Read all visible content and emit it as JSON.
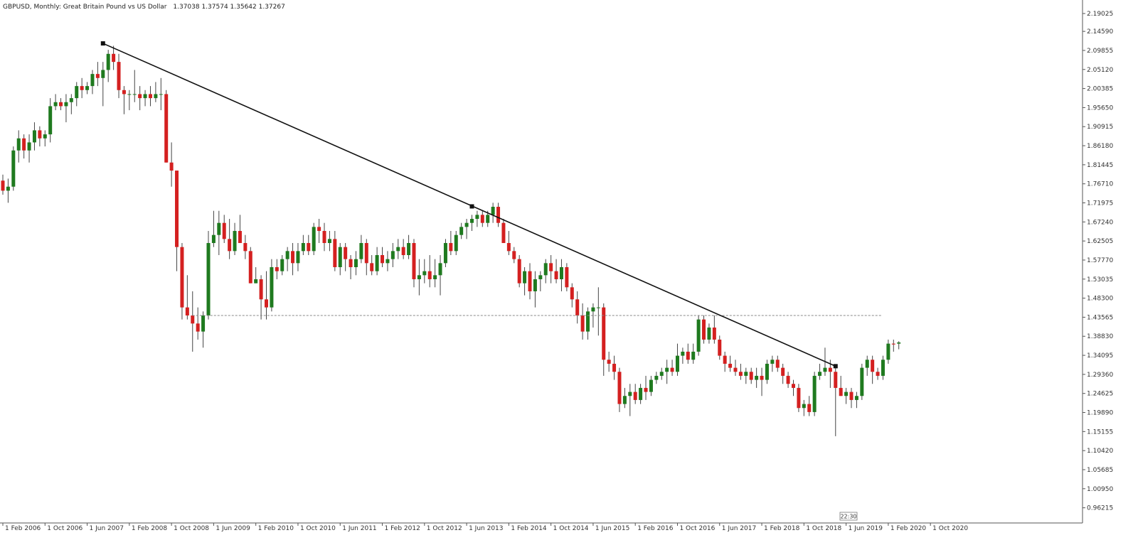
{
  "header": {
    "symbol_title": "GBPUSD, Monthly:  Great Britain Pound vs US Dollar",
    "ohlc": "1.37038 1.37574 1.35642 1.37267"
  },
  "countdown": "22:30",
  "colors": {
    "up": "#1f7a1f",
    "down": "#d42020",
    "wick": "#444444",
    "trendline": "#111111",
    "level": "#888888",
    "axis": "#555555",
    "background": "#ffffff"
  },
  "chart_data": {
    "type": "candlestick",
    "title": "GBPUSD, Monthly:  Great Britain Pound vs US Dollar",
    "xlabel": "",
    "ylabel": "",
    "ylim": [
      0.935,
      2.215
    ],
    "y_ticks": [
      "2.19025",
      "2.14590",
      "2.09855",
      "2.05120",
      "2.00385",
      "1.95650",
      "1.90915",
      "1.86180",
      "1.81445",
      "1.76710",
      "1.71975",
      "1.67240",
      "1.62505",
      "1.57770",
      "1.53035",
      "1.48300",
      "1.43565",
      "1.38830",
      "1.34095",
      "1.29360",
      "1.24625",
      "1.19890",
      "1.15155",
      "1.10420",
      "1.05685",
      "1.00950",
      "0.96215"
    ],
    "x_ticks": [
      "1 Feb 2006",
      "1 Oct 2006",
      "1 Jun 2007",
      "1 Feb 2008",
      "1 Oct 2008",
      "1 Jun 2009",
      "1 Feb 2010",
      "1 Oct 2010",
      "1 Jun 2011",
      "1 Feb 2012",
      "1 Oct 2012",
      "1 Jun 2013",
      "1 Feb 2014",
      "1 Oct 2014",
      "1 Jun 2015",
      "1 Feb 2016",
      "1 Oct 2016",
      "1 Jun 2017",
      "1 Feb 2018",
      "1 Oct 2018",
      "1 Jun 2019",
      "1 Feb 2020",
      "1 Oct 2020"
    ],
    "grid": false,
    "candles": [
      [
        1.775,
        1.79,
        1.74,
        1.75
      ],
      [
        1.75,
        1.78,
        1.72,
        1.76
      ],
      [
        1.76,
        1.86,
        1.75,
        1.85
      ],
      [
        1.85,
        1.9,
        1.82,
        1.88
      ],
      [
        1.88,
        1.89,
        1.83,
        1.85
      ],
      [
        1.85,
        1.89,
        1.82,
        1.87
      ],
      [
        1.87,
        1.92,
        1.85,
        1.9
      ],
      [
        1.9,
        1.91,
        1.86,
        1.88
      ],
      [
        1.88,
        1.9,
        1.86,
        1.89
      ],
      [
        1.89,
        1.98,
        1.87,
        1.96
      ],
      [
        1.96,
        1.99,
        1.95,
        1.97
      ],
      [
        1.97,
        1.98,
        1.95,
        1.96
      ],
      [
        1.96,
        1.99,
        1.92,
        1.97
      ],
      [
        1.97,
        1.99,
        1.94,
        1.98
      ],
      [
        1.98,
        2.02,
        1.96,
        2.01
      ],
      [
        2.01,
        2.03,
        1.98,
        2.0
      ],
      [
        2.0,
        2.02,
        1.99,
        2.01
      ],
      [
        2.01,
        2.05,
        1.99,
        2.04
      ],
      [
        2.04,
        2.07,
        2.01,
        2.03
      ],
      [
        2.03,
        2.07,
        1.96,
        2.05
      ],
      [
        2.05,
        2.1,
        2.02,
        2.09
      ],
      [
        2.09,
        2.11,
        2.05,
        2.07
      ],
      [
        2.07,
        2.09,
        1.98,
        2.0
      ],
      [
        2.0,
        2.01,
        1.94,
        1.99
      ],
      [
        1.99,
        2.0,
        1.95,
        1.99
      ],
      [
        1.99,
        2.05,
        1.97,
        1.99
      ],
      [
        1.99,
        2.01,
        1.95,
        1.98
      ],
      [
        1.98,
        2.0,
        1.96,
        1.99
      ],
      [
        1.99,
        2.01,
        1.96,
        1.98
      ],
      [
        1.98,
        2.02,
        1.97,
        1.99
      ],
      [
        1.99,
        2.03,
        1.95,
        1.99
      ],
      [
        1.99,
        2.0,
        1.82,
        1.82
      ],
      [
        1.82,
        1.87,
        1.76,
        1.8
      ],
      [
        1.8,
        1.79,
        1.55,
        1.61
      ],
      [
        1.61,
        1.62,
        1.43,
        1.46
      ],
      [
        1.46,
        1.54,
        1.43,
        1.44
      ],
      [
        1.44,
        1.5,
        1.35,
        1.42
      ],
      [
        1.42,
        1.46,
        1.38,
        1.4
      ],
      [
        1.4,
        1.45,
        1.36,
        1.44
      ],
      [
        1.44,
        1.65,
        1.43,
        1.62
      ],
      [
        1.62,
        1.7,
        1.61,
        1.64
      ],
      [
        1.64,
        1.7,
        1.59,
        1.67
      ],
      [
        1.67,
        1.69,
        1.62,
        1.63
      ],
      [
        1.63,
        1.68,
        1.58,
        1.6
      ],
      [
        1.6,
        1.67,
        1.59,
        1.65
      ],
      [
        1.65,
        1.69,
        1.62,
        1.62
      ],
      [
        1.62,
        1.64,
        1.58,
        1.6
      ],
      [
        1.6,
        1.61,
        1.52,
        1.52
      ],
      [
        1.52,
        1.56,
        1.52,
        1.53
      ],
      [
        1.53,
        1.54,
        1.43,
        1.48
      ],
      [
        1.48,
        1.55,
        1.43,
        1.46
      ],
      [
        1.46,
        1.58,
        1.45,
        1.56
      ],
      [
        1.56,
        1.58,
        1.53,
        1.55
      ],
      [
        1.55,
        1.59,
        1.54,
        1.58
      ],
      [
        1.58,
        1.61,
        1.55,
        1.6
      ],
      [
        1.6,
        1.62,
        1.54,
        1.57
      ],
      [
        1.57,
        1.62,
        1.55,
        1.6
      ],
      [
        1.6,
        1.64,
        1.59,
        1.62
      ],
      [
        1.62,
        1.64,
        1.59,
        1.6
      ],
      [
        1.6,
        1.67,
        1.59,
        1.66
      ],
      [
        1.66,
        1.68,
        1.62,
        1.65
      ],
      [
        1.65,
        1.67,
        1.6,
        1.62
      ],
      [
        1.62,
        1.65,
        1.6,
        1.63
      ],
      [
        1.63,
        1.65,
        1.55,
        1.56
      ],
      [
        1.56,
        1.62,
        1.54,
        1.61
      ],
      [
        1.61,
        1.62,
        1.55,
        1.58
      ],
      [
        1.58,
        1.59,
        1.53,
        1.56
      ],
      [
        1.56,
        1.6,
        1.54,
        1.58
      ],
      [
        1.58,
        1.64,
        1.57,
        1.62
      ],
      [
        1.62,
        1.63,
        1.54,
        1.57
      ],
      [
        1.57,
        1.59,
        1.54,
        1.55
      ],
      [
        1.55,
        1.61,
        1.54,
        1.59
      ],
      [
        1.59,
        1.61,
        1.56,
        1.57
      ],
      [
        1.57,
        1.6,
        1.55,
        1.58
      ],
      [
        1.58,
        1.62,
        1.56,
        1.6
      ],
      [
        1.6,
        1.63,
        1.58,
        1.61
      ],
      [
        1.61,
        1.63,
        1.58,
        1.59
      ],
      [
        1.59,
        1.64,
        1.58,
        1.62
      ],
      [
        1.62,
        1.63,
        1.51,
        1.53
      ],
      [
        1.53,
        1.58,
        1.49,
        1.54
      ],
      [
        1.54,
        1.58,
        1.52,
        1.55
      ],
      [
        1.55,
        1.59,
        1.51,
        1.53
      ],
      [
        1.53,
        1.58,
        1.51,
        1.54
      ],
      [
        1.54,
        1.59,
        1.49,
        1.57
      ],
      [
        1.57,
        1.63,
        1.56,
        1.62
      ],
      [
        1.62,
        1.65,
        1.59,
        1.6
      ],
      [
        1.6,
        1.65,
        1.59,
        1.64
      ],
      [
        1.64,
        1.67,
        1.63,
        1.66
      ],
      [
        1.66,
        1.68,
        1.63,
        1.67
      ],
      [
        1.67,
        1.69,
        1.65,
        1.68
      ],
      [
        1.68,
        1.7,
        1.66,
        1.69
      ],
      [
        1.69,
        1.7,
        1.66,
        1.67
      ],
      [
        1.67,
        1.7,
        1.66,
        1.69
      ],
      [
        1.69,
        1.72,
        1.67,
        1.71
      ],
      [
        1.71,
        1.72,
        1.66,
        1.67
      ],
      [
        1.67,
        1.68,
        1.62,
        1.62
      ],
      [
        1.62,
        1.65,
        1.59,
        1.6
      ],
      [
        1.6,
        1.61,
        1.57,
        1.58
      ],
      [
        1.58,
        1.59,
        1.51,
        1.52
      ],
      [
        1.52,
        1.56,
        1.49,
        1.55
      ],
      [
        1.55,
        1.57,
        1.48,
        1.5
      ],
      [
        1.5,
        1.55,
        1.46,
        1.53
      ],
      [
        1.53,
        1.55,
        1.5,
        1.54
      ],
      [
        1.54,
        1.58,
        1.52,
        1.57
      ],
      [
        1.57,
        1.59,
        1.52,
        1.55
      ],
      [
        1.55,
        1.58,
        1.52,
        1.53
      ],
      [
        1.53,
        1.58,
        1.5,
        1.56
      ],
      [
        1.56,
        1.57,
        1.5,
        1.51
      ],
      [
        1.51,
        1.52,
        1.46,
        1.48
      ],
      [
        1.48,
        1.5,
        1.42,
        1.44
      ],
      [
        1.44,
        1.47,
        1.38,
        1.4
      ],
      [
        1.4,
        1.46,
        1.38,
        1.45
      ],
      [
        1.45,
        1.47,
        1.41,
        1.46
      ],
      [
        1.46,
        1.51,
        1.39,
        1.46
      ],
      [
        1.46,
        1.47,
        1.29,
        1.33
      ],
      [
        1.33,
        1.35,
        1.3,
        1.32
      ],
      [
        1.32,
        1.34,
        1.28,
        1.3
      ],
      [
        1.3,
        1.31,
        1.2,
        1.22
      ],
      [
        1.22,
        1.26,
        1.21,
        1.24
      ],
      [
        1.24,
        1.27,
        1.19,
        1.25
      ],
      [
        1.25,
        1.27,
        1.22,
        1.23
      ],
      [
        1.23,
        1.27,
        1.22,
        1.26
      ],
      [
        1.26,
        1.29,
        1.23,
        1.25
      ],
      [
        1.25,
        1.29,
        1.24,
        1.28
      ],
      [
        1.28,
        1.3,
        1.27,
        1.29
      ],
      [
        1.29,
        1.31,
        1.28,
        1.3
      ],
      [
        1.3,
        1.33,
        1.27,
        1.31
      ],
      [
        1.31,
        1.33,
        1.29,
        1.3
      ],
      [
        1.3,
        1.37,
        1.29,
        1.34
      ],
      [
        1.34,
        1.36,
        1.32,
        1.35
      ],
      [
        1.35,
        1.37,
        1.32,
        1.33
      ],
      [
        1.33,
        1.37,
        1.32,
        1.35
      ],
      [
        1.35,
        1.44,
        1.34,
        1.43
      ],
      [
        1.43,
        1.44,
        1.37,
        1.38
      ],
      [
        1.38,
        1.42,
        1.37,
        1.41
      ],
      [
        1.41,
        1.44,
        1.37,
        1.38
      ],
      [
        1.38,
        1.39,
        1.33,
        1.34
      ],
      [
        1.34,
        1.35,
        1.3,
        1.32
      ],
      [
        1.32,
        1.34,
        1.3,
        1.31
      ],
      [
        1.31,
        1.33,
        1.29,
        1.3
      ],
      [
        1.3,
        1.32,
        1.28,
        1.29
      ],
      [
        1.29,
        1.31,
        1.27,
        1.3
      ],
      [
        1.3,
        1.31,
        1.27,
        1.28
      ],
      [
        1.28,
        1.31,
        1.26,
        1.29
      ],
      [
        1.29,
        1.31,
        1.24,
        1.28
      ],
      [
        1.28,
        1.33,
        1.27,
        1.32
      ],
      [
        1.32,
        1.34,
        1.3,
        1.33
      ],
      [
        1.33,
        1.34,
        1.3,
        1.31
      ],
      [
        1.31,
        1.32,
        1.27,
        1.29
      ],
      [
        1.29,
        1.3,
        1.26,
        1.27
      ],
      [
        1.27,
        1.28,
        1.24,
        1.26
      ],
      [
        1.26,
        1.27,
        1.2,
        1.21
      ],
      [
        1.21,
        1.23,
        1.19,
        1.22
      ],
      [
        1.22,
        1.24,
        1.19,
        1.2
      ],
      [
        1.2,
        1.3,
        1.19,
        1.29
      ],
      [
        1.29,
        1.32,
        1.28,
        1.3
      ],
      [
        1.3,
        1.36,
        1.29,
        1.31
      ],
      [
        1.31,
        1.33,
        1.26,
        1.3
      ],
      [
        1.3,
        1.31,
        1.14,
        1.26
      ],
      [
        1.26,
        1.29,
        1.24,
        1.24
      ],
      [
        1.24,
        1.26,
        1.22,
        1.25
      ],
      [
        1.25,
        1.26,
        1.21,
        1.23
      ],
      [
        1.23,
        1.25,
        1.21,
        1.24
      ],
      [
        1.24,
        1.32,
        1.23,
        1.31
      ],
      [
        1.31,
        1.34,
        1.29,
        1.33
      ],
      [
        1.33,
        1.34,
        1.27,
        1.3
      ],
      [
        1.3,
        1.31,
        1.28,
        1.29
      ],
      [
        1.29,
        1.34,
        1.28,
        1.33
      ],
      [
        1.33,
        1.38,
        1.32,
        1.37
      ],
      [
        1.37,
        1.38,
        1.35,
        1.368
      ],
      [
        1.37,
        1.376,
        1.356,
        1.373
      ]
    ],
    "trendline": {
      "from": {
        "index": 19,
        "value": 2.116
      },
      "via": {
        "index": 89,
        "value": 1.711
      },
      "to": {
        "index": 158,
        "value": 1.314
      }
    },
    "support_level": 1.44
  }
}
